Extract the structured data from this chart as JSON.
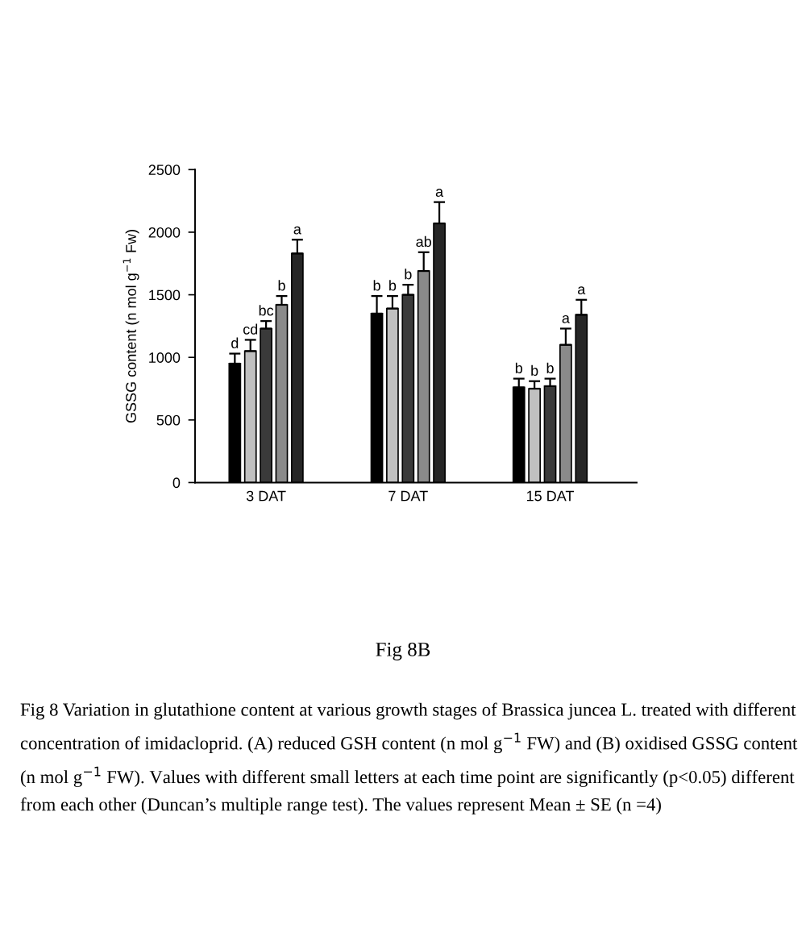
{
  "chart_data": {
    "type": "bar",
    "ylabel": "GSSG content (n mol g$^{−1}$ Fw)",
    "categories": [
      "3 DAT",
      "7 DAT",
      "15 DAT"
    ],
    "series": [
      {
        "color": "#000000",
        "values": [
          950,
          1350,
          760
        ],
        "errors": [
          [
            950,
            1030
          ],
          [
            1350,
            1490
          ],
          [
            760,
            830
          ]
        ],
        "value_labels": [
          "d",
          "b",
          "b"
        ]
      },
      {
        "color": "#c0c0c0",
        "values": [
          1050,
          1390,
          750
        ],
        "errors": [
          [
            1050,
            1140
          ],
          [
            1390,
            1490
          ],
          [
            750,
            810
          ]
        ],
        "value_labels": [
          "cd",
          "b",
          "b"
        ]
      },
      {
        "color": "#3a3a3a",
        "values": [
          1230,
          1500,
          770
        ],
        "errors": [
          [
            1230,
            1290
          ],
          [
            1500,
            1580
          ],
          [
            770,
            830
          ]
        ],
        "value_labels": [
          "bc",
          "b",
          "b"
        ]
      },
      {
        "color": "#8a8a8a",
        "values": [
          1420,
          1690,
          1100
        ],
        "errors": [
          [
            1420,
            1490
          ],
          [
            1690,
            1840
          ],
          [
            1100,
            1230
          ]
        ],
        "value_labels": [
          "b",
          "ab",
          "a"
        ]
      },
      {
        "color": "#262626",
        "values": [
          1830,
          2070,
          1340
        ],
        "errors": [
          [
            1830,
            1940
          ],
          [
            2070,
            2240
          ],
          [
            1340,
            1460
          ]
        ],
        "value_labels": [
          "a",
          "a",
          "a"
        ]
      }
    ],
    "ylim": [
      0,
      2500
    ],
    "yticks": [
      0,
      500,
      1000,
      1500,
      2000,
      2500
    ],
    "grid": false,
    "legend": false,
    "annotations": [
      "Fig 8B",
      "Fig 8 Variation in glutathione content at various growth stages of Brassica juncea L. treated with different concentration of imidacloprid. (A) reduced GSH content (n mol g$^{−1}$ FW) and (B) oxidised GSSG content (n mol g$^{−1}$ FW). Values with different small letters at each time point are significantly (p<0.05) different from each other (Duncan’s multiple range test). The values represent Mean ± SE (n =4)"
    ]
  }
}
